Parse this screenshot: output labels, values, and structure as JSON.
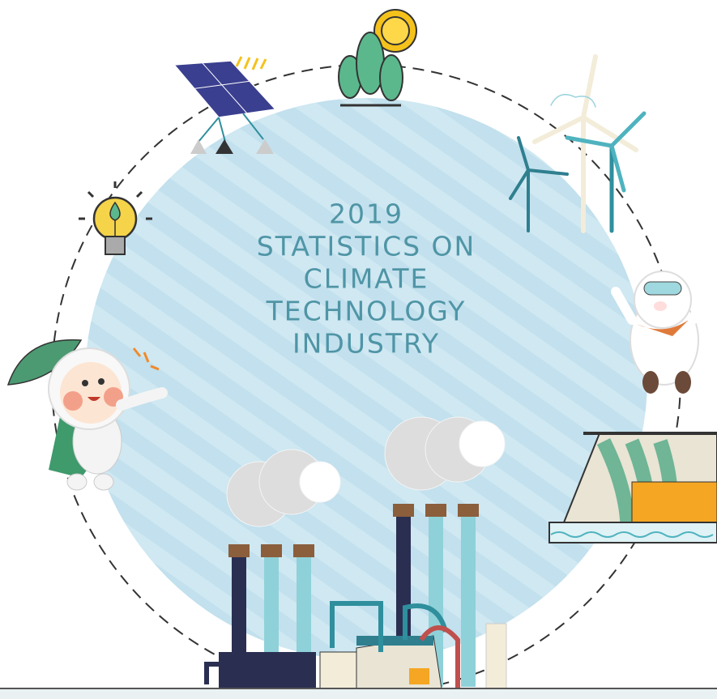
{
  "title_lines": [
    "2019",
    "STATISTICS ON",
    "CLIMATE",
    "TECHNOLOGY",
    "INDUSTRY"
  ]
}
